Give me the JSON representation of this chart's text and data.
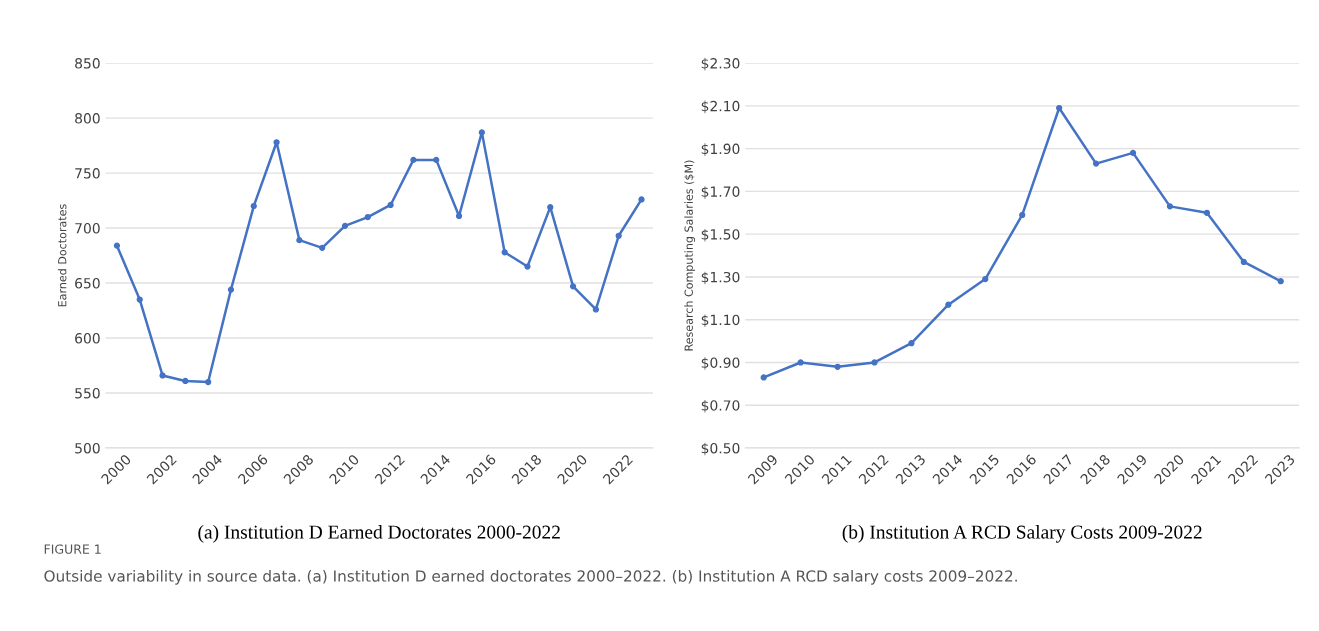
{
  "chart_data": [
    {
      "type": "line",
      "title": "(a) Institution D Earned Doctorates 2000-2022",
      "ylabel": "Earned Doctorates",
      "categories": [
        "2000",
        null,
        "2002",
        null,
        "2004",
        null,
        "2006",
        null,
        "2008",
        null,
        "2010",
        null,
        "2012",
        null,
        "2014",
        null,
        "2016",
        null,
        "2018",
        null,
        "2020",
        null,
        "2022",
        null
      ],
      "series": [
        {
          "color": "#4472c4",
          "values": [
            684,
            635,
            566,
            561,
            560,
            644,
            720,
            778,
            689,
            682,
            702,
            710,
            721,
            762,
            762,
            711,
            787,
            678,
            665,
            719,
            647,
            626,
            693,
            726
          ]
        }
      ],
      "ylim": [
        500,
        850
      ],
      "yticks": [
        500,
        550,
        600,
        650,
        700,
        750,
        800,
        850
      ],
      "grid": "y",
      "marker": "circle",
      "line_style": "solid",
      "annotations": [
        "FIGURE 1",
        "Outside variability in source data. (a) Institution D earned doctorates 2000–2022. (b) Institution A RCD salary costs 2009–2022."
      ]
    },
    {
      "type": "line",
      "title": "(b) Institution A RCD Salary Costs 2009-2022",
      "ylabel": "Research Computing Salaries ($M)",
      "categories": [
        "2009",
        "2010",
        "2011",
        "2012",
        "2013",
        "2014",
        "2015",
        "2016",
        "2017",
        "2018",
        "2019",
        "2020",
        "2021",
        "2022",
        "2023"
      ],
      "series": [
        {
          "color": "#4472c4",
          "values": [
            0.83,
            0.9,
            0.88,
            0.9,
            0.99,
            1.17,
            1.29,
            1.59,
            2.09,
            1.83,
            1.88,
            1.63,
            1.6,
            1.37,
            1.28
          ]
        }
      ],
      "ylim": [
        0.5,
        2.3
      ],
      "yticks": [
        {
          "value": 0.5,
          "label": "$0.50"
        },
        {
          "value": 0.7,
          "label": "$0.70"
        },
        {
          "value": 0.9,
          "label": "$0.90"
        },
        {
          "value": 1.1,
          "label": "$1.10"
        },
        {
          "value": 1.3,
          "label": "$1.30"
        },
        {
          "value": 1.5,
          "label": "$1.50"
        },
        {
          "value": 1.7,
          "label": "$1.70"
        },
        {
          "value": 1.9,
          "label": "$1.90"
        },
        {
          "value": 2.1,
          "label": "$2.10"
        },
        {
          "value": 2.3,
          "label": "$2.30"
        }
      ],
      "grid": "y",
      "marker": "circle",
      "line_style": "solid"
    }
  ]
}
